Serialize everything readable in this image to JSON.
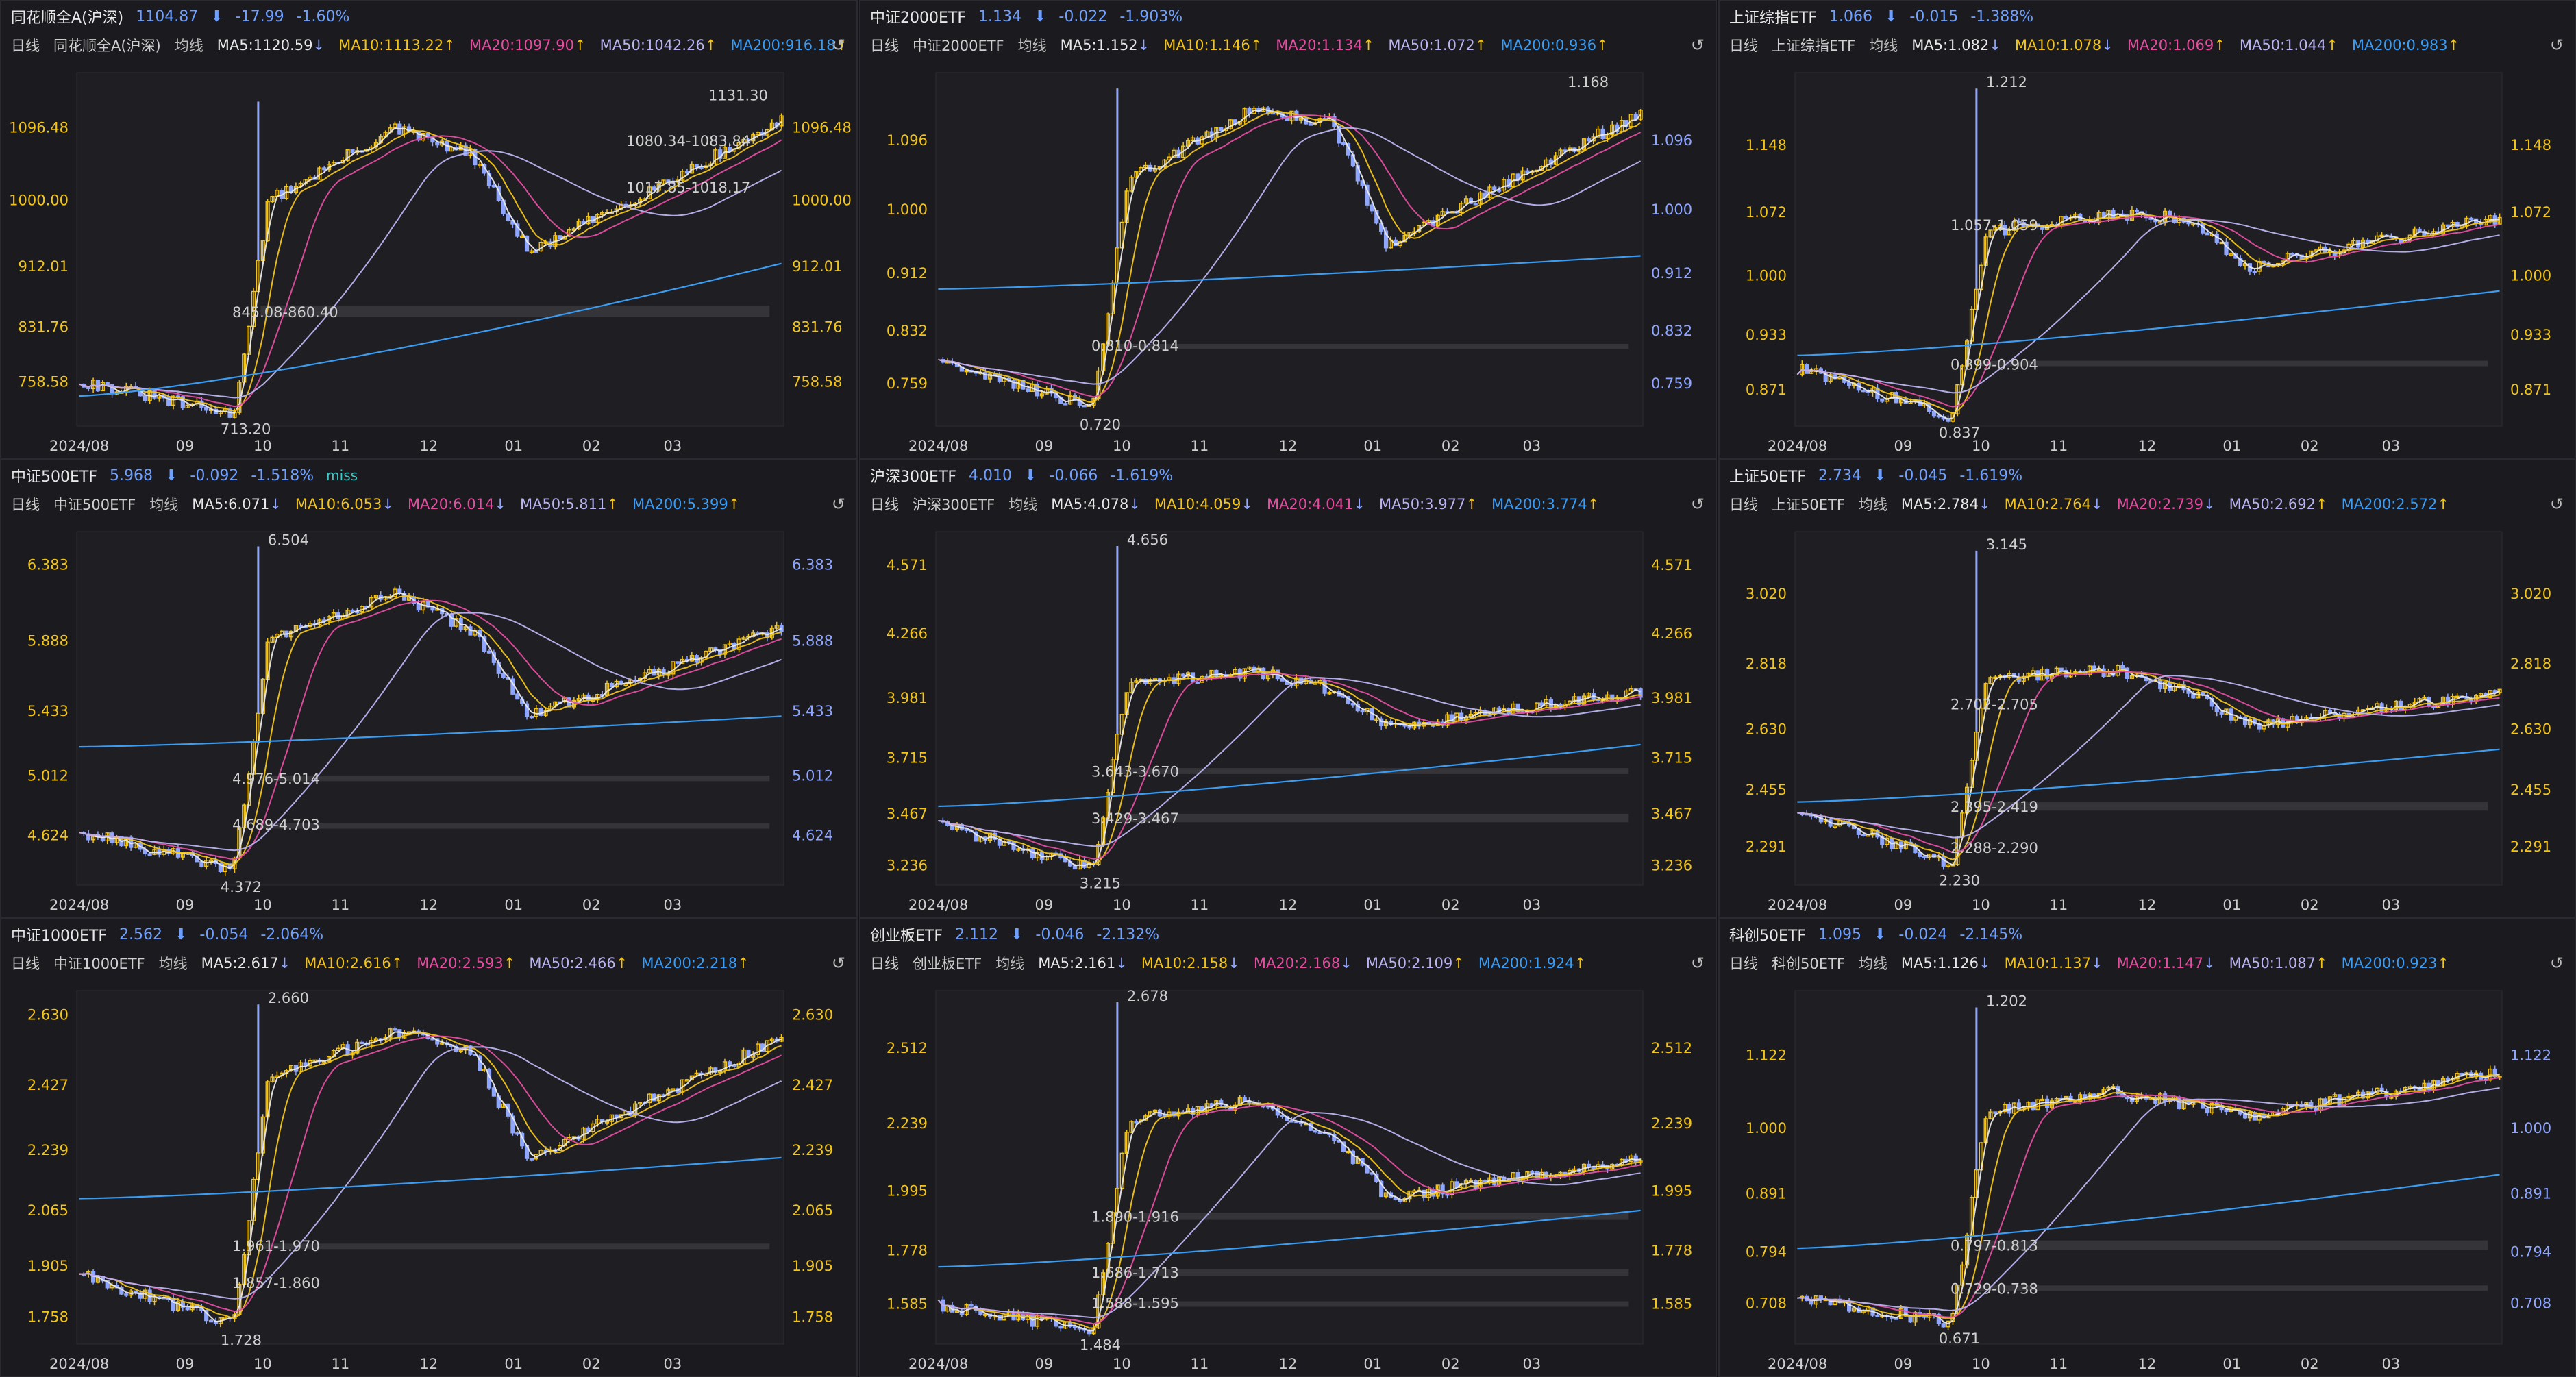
{
  "x_labels": [
    "2024/08",
    "09",
    "10",
    "11",
    "12",
    "01",
    "02",
    "03"
  ],
  "colors": {
    "ma5": "#e8e8e8",
    "ma10": "#f2c418",
    "ma20": "#e34ea0",
    "ma50": "#b9b4f0",
    "ma200": "#3a9cf2",
    "price_up": "#f2c418",
    "price_dn": "#8fa6ff",
    "gap": "#3a3a3e"
  },
  "common": {
    "period": "日线",
    "avg": "均线",
    "reset_icon": "undo-icon"
  },
  "panels": [
    {
      "name": "同花顺全A(沪深)",
      "price": "1104.87",
      "change": "-17.99",
      "pct": "-1.60%",
      "sub_name": "同花顺全A(沪深)",
      "ma5": "MA5:1120.59",
      "ma5_dir": "down",
      "ma10": "MA10:1113.22",
      "ma10_dir": "up",
      "ma20": "MA20:1097.90",
      "ma20_dir": "up",
      "ma50": "MA50:1042.26",
      "ma50_dir": "up",
      "ma200": "MA200:916.18",
      "ma200_dir": "up",
      "left_ticks": [
        "1096.48",
        "1000.00",
        "912.01",
        "831.76",
        "758.58"
      ],
      "right_ticks": [
        "1096.48",
        "1000.00",
        "912.01",
        "831.76",
        "758.58"
      ],
      "ymin": 700,
      "ymax": 1170,
      "tick_values": [
        1096.48,
        1000.0,
        912.01,
        831.76,
        758.58
      ],
      "hi": {
        "label": "1131.30",
        "value": 1131.3
      },
      "lo": {
        "label": "713.20",
        "value": 713.2
      },
      "ann": [
        {
          "t": "1080.34-1083.84",
          "v": 1080
        },
        {
          "t": "1017.85-1018.17",
          "v": 1018
        },
        {
          "t": "845.08-860.40",
          "v": 852
        }
      ],
      "gaps": [
        {
          "lo": 845.08,
          "hi": 860.4
        }
      ],
      "prof": {
        "base": 760,
        "trough": 715,
        "jump": 1000,
        "nov": 1095,
        "dec": 1060,
        "dip": 930,
        "end": 1104.87
      },
      "ma200_start": 740
    },
    {
      "name": "中证2000ETF",
      "price": "1.134",
      "change": "-0.022",
      "pct": "-1.903%",
      "sub_name": "中证2000ETF",
      "ma5": "MA5:1.152",
      "ma5_dir": "down",
      "ma10": "MA10:1.146",
      "ma10_dir": "up",
      "ma20": "MA20:1.134",
      "ma20_dir": "up",
      "ma50": "MA50:1.072",
      "ma50_dir": "up",
      "ma200": "MA200:0.936",
      "ma200_dir": "up",
      "left_ticks": [
        "1.096",
        "1.000",
        "0.912",
        "0.832",
        "0.759"
      ],
      "right_ticks": [
        "1.096",
        "1.000",
        "0.912",
        "0.832",
        "0.759"
      ],
      "ymin": 0.7,
      "ymax": 1.19,
      "tick_values": [
        1.096,
        1.0,
        0.912,
        0.832,
        0.759
      ],
      "hi": {
        "label": "1.168",
        "value": 1.168
      },
      "lo": {
        "label": "0.720",
        "value": 0.72
      },
      "ann": [
        {
          "t": "0.810-0.814",
          "v": 0.812
        }
      ],
      "gaps": [
        {
          "lo": 0.81,
          "hi": 0.814
        }
      ],
      "prof": {
        "base": 0.79,
        "trough": 0.725,
        "jump": 1.04,
        "nov": 1.14,
        "dec": 1.12,
        "dip": 0.95,
        "end": 1.134
      },
      "ma200_start": 0.89
    },
    {
      "name": "上证综指ETF",
      "price": "1.066",
      "change": "-0.015",
      "pct": "-1.388%",
      "sub_name": "上证综指ETF",
      "ma5": "MA5:1.082",
      "ma5_dir": "down",
      "ma10": "MA10:1.078",
      "ma10_dir": "down",
      "ma20": "MA20:1.069",
      "ma20_dir": "up",
      "ma50": "MA50:1.044",
      "ma50_dir": "up",
      "ma200": "MA200:0.983",
      "ma200_dir": "up",
      "left_ticks": [
        "1.148",
        "1.072",
        "1.000",
        "0.933",
        "0.871"
      ],
      "right_ticks": [
        "1.148",
        "1.072",
        "1.000",
        "0.933",
        "0.871"
      ],
      "ymin": 0.83,
      "ymax": 1.23,
      "tick_values": [
        1.148,
        1.072,
        1.0,
        0.933,
        0.871
      ],
      "hi": {
        "label": "1.212",
        "value": 1.212
      },
      "lo": {
        "label": "0.837",
        "value": 0.837
      },
      "ann": [
        {
          "t": "1.057-1.059",
          "v": 1.058
        },
        {
          "t": "0.899-0.904",
          "v": 0.9
        }
      ],
      "gaps": [
        {
          "lo": 0.899,
          "hi": 0.904
        }
      ],
      "prof": {
        "base": 0.895,
        "trough": 0.84,
        "jump": 1.05,
        "nov": 1.07,
        "dec": 1.065,
        "dip": 1.01,
        "end": 1.066
      },
      "ma200_start": 0.91
    },
    {
      "name": "中证500ETF",
      "price": "5.968",
      "change": "-0.092",
      "pct": "-1.518%",
      "miss": "miss",
      "sub_name": "中证500ETF",
      "ma5": "MA5:6.071",
      "ma5_dir": "down",
      "ma10": "MA10:6.053",
      "ma10_dir": "down",
      "ma20": "MA20:6.014",
      "ma20_dir": "down",
      "ma50": "MA50:5.811",
      "ma50_dir": "up",
      "ma200": "MA200:5.399",
      "ma200_dir": "up",
      "left_ticks": [
        "6.383",
        "5.888",
        "5.433",
        "5.012",
        "4.624"
      ],
      "right_ticks": [
        "6.383",
        "5.888",
        "5.433",
        "5.012",
        "4.624"
      ],
      "ymin": 4.3,
      "ymax": 6.6,
      "tick_values": [
        6.383,
        5.888,
        5.433,
        5.012,
        4.624
      ],
      "hi": {
        "label": "6.504",
        "value": 6.504
      },
      "lo": {
        "label": "4.372",
        "value": 4.372
      },
      "ann": [
        {
          "t": "4.976-5.014",
          "v": 4.995
        },
        {
          "t": "4.689-4.703",
          "v": 4.696
        }
      ],
      "gaps": [
        {
          "lo": 4.976,
          "hi": 5.014
        },
        {
          "lo": 4.689,
          "hi": 4.703
        }
      ],
      "prof": {
        "base": 4.65,
        "trough": 4.4,
        "jump": 5.9,
        "nov": 6.2,
        "dec": 5.95,
        "dip": 5.4,
        "end": 5.968
      },
      "ma200_start": 5.2
    },
    {
      "name": "沪深300ETF",
      "price": "4.010",
      "change": "-0.066",
      "pct": "-1.619%",
      "sub_name": "沪深300ETF",
      "ma5": "MA5:4.078",
      "ma5_dir": "down",
      "ma10": "MA10:4.059",
      "ma10_dir": "down",
      "ma20": "MA20:4.041",
      "ma20_dir": "down",
      "ma50": "MA50:3.977",
      "ma50_dir": "up",
      "ma200": "MA200:3.774",
      "ma200_dir": "up",
      "left_ticks": [
        "4.571",
        "4.266",
        "3.981",
        "3.715",
        "3.467",
        "3.236"
      ],
      "right_ticks": [
        "4.571",
        "4.266",
        "3.981",
        "3.715",
        "3.467",
        "3.236"
      ],
      "ymin": 3.15,
      "ymax": 4.72,
      "tick_values": [
        4.571,
        4.266,
        3.981,
        3.715,
        3.467,
        3.236
      ],
      "hi": {
        "label": "4.656",
        "value": 4.656
      },
      "lo": {
        "label": "3.215",
        "value": 3.215
      },
      "ann": [
        {
          "t": "3.643-3.670",
          "v": 3.656
        },
        {
          "t": "3.429-3.467",
          "v": 3.448
        }
      ],
      "gaps": [
        {
          "lo": 3.643,
          "hi": 3.67
        },
        {
          "lo": 3.429,
          "hi": 3.467
        }
      ],
      "prof": {
        "base": 3.42,
        "trough": 3.22,
        "jump": 4.05,
        "nov": 4.1,
        "dec": 4.02,
        "dip": 3.85,
        "end": 4.01
      },
      "ma200_start": 3.5
    },
    {
      "name": "上证50ETF",
      "price": "2.734",
      "change": "-0.045",
      "pct": "-1.619%",
      "sub_name": "上证50ETF",
      "ma5": "MA5:2.784",
      "ma5_dir": "down",
      "ma10": "MA10:2.764",
      "ma10_dir": "down",
      "ma20": "MA20:2.739",
      "ma20_dir": "down",
      "ma50": "MA50:2.692",
      "ma50_dir": "up",
      "ma200": "MA200:2.572",
      "ma200_dir": "up",
      "left_ticks": [
        "3.020",
        "2.818",
        "2.630",
        "2.455",
        "2.291"
      ],
      "right_ticks": [
        "3.020",
        "2.818",
        "2.630",
        "2.455",
        "2.291"
      ],
      "ymin": 2.18,
      "ymax": 3.2,
      "tick_values": [
        3.02,
        2.818,
        2.63,
        2.455,
        2.291
      ],
      "hi": {
        "label": "3.145",
        "value": 3.145
      },
      "lo": {
        "label": "2.230",
        "value": 2.23
      },
      "ann": [
        {
          "t": "2.702-2.705",
          "v": 2.703
        },
        {
          "t": "2.395-2.419",
          "v": 2.407
        },
        {
          "t": "2.288-2.290",
          "v": 2.289
        }
      ],
      "gaps": [
        {
          "lo": 2.395,
          "hi": 2.419
        }
      ],
      "prof": {
        "base": 2.4,
        "trough": 2.24,
        "jump": 2.78,
        "nov": 2.8,
        "dec": 2.74,
        "dip": 2.64,
        "end": 2.734
      },
      "ma200_start": 2.42
    },
    {
      "name": "中证1000ETF",
      "price": "2.562",
      "change": "-0.054",
      "pct": "-2.064%",
      "sub_name": "中证1000ETF",
      "ma5": "MA5:2.617",
      "ma5_dir": "down",
      "ma10": "MA10:2.616",
      "ma10_dir": "up",
      "ma20": "MA20:2.593",
      "ma20_dir": "up",
      "ma50": "MA50:2.466",
      "ma50_dir": "up",
      "ma200": "MA200:2.218",
      "ma200_dir": "up",
      "left_ticks": [
        "2.630",
        "2.427",
        "2.239",
        "2.065",
        "1.905",
        "1.758"
      ],
      "right_ticks": [
        "2.630",
        "2.427",
        "2.239",
        "2.065",
        "1.905",
        "1.758"
      ],
      "ymin": 1.68,
      "ymax": 2.7,
      "tick_values": [
        2.63,
        2.427,
        2.239,
        2.065,
        1.905,
        1.758
      ],
      "hi": {
        "label": "2.660",
        "value": 2.66
      },
      "lo": {
        "label": "1.728",
        "value": 1.728
      },
      "ann": [
        {
          "t": "1.961-1.970",
          "v": 1.965
        },
        {
          "t": "1.857-1.860",
          "v": 1.858
        }
      ],
      "gaps": [
        {
          "lo": 1.961,
          "hi": 1.97
        }
      ],
      "prof": {
        "base": 1.88,
        "trough": 1.74,
        "jump": 2.45,
        "nov": 2.58,
        "dec": 2.52,
        "dip": 2.22,
        "end": 2.562
      },
      "ma200_start": 2.1
    },
    {
      "name": "创业板ETF",
      "price": "2.112",
      "change": "-0.046",
      "pct": "-2.132%",
      "sub_name": "创业板ETF",
      "ma5": "MA5:2.161",
      "ma5_dir": "down",
      "ma10": "MA10:2.158",
      "ma10_dir": "down",
      "ma20": "MA20:2.168",
      "ma20_dir": "down",
      "ma50": "MA50:2.109",
      "ma50_dir": "up",
      "ma200": "MA200:1.924",
      "ma200_dir": "up",
      "left_ticks": [
        "2.512",
        "2.239",
        "1.995",
        "1.778",
        "1.585"
      ],
      "right_ticks": [
        "2.512",
        "2.239",
        "1.995",
        "1.778",
        "1.585"
      ],
      "ymin": 1.44,
      "ymax": 2.72,
      "tick_values": [
        2.512,
        2.239,
        1.995,
        1.778,
        1.585
      ],
      "hi": {
        "label": "2.678",
        "value": 2.678
      },
      "lo": {
        "label": "1.484",
        "value": 1.484
      },
      "ann": [
        {
          "t": "1.890-1.916",
          "v": 1.903
        },
        {
          "t": "1.686-1.713",
          "v": 1.7
        },
        {
          "t": "1.588-1.595",
          "v": 1.59
        }
      ],
      "gaps": [
        {
          "lo": 1.89,
          "hi": 1.916
        },
        {
          "lo": 1.686,
          "hi": 1.713
        },
        {
          "lo": 1.588,
          "hi": 1.595
        }
      ],
      "prof": {
        "base": 1.58,
        "trough": 1.49,
        "jump": 2.25,
        "nov": 2.32,
        "dec": 2.2,
        "dip": 1.97,
        "end": 2.112
      },
      "ma200_start": 1.72
    },
    {
      "name": "科创50ETF",
      "price": "1.095",
      "change": "-0.024",
      "pct": "-2.145%",
      "sub_name": "科创50ETF",
      "ma5": "MA5:1.126",
      "ma5_dir": "down",
      "ma10": "MA10:1.137",
      "ma10_dir": "down",
      "ma20": "MA20:1.147",
      "ma20_dir": "down",
      "ma50": "MA50:1.087",
      "ma50_dir": "up",
      "ma200": "MA200:0.923",
      "ma200_dir": "up",
      "left_ticks": [
        "1.122",
        "1.000",
        "0.891",
        "0.794",
        "0.708"
      ],
      "right_ticks": [
        "1.122",
        "1.000",
        "0.891",
        "0.794",
        "0.708"
      ],
      "ymin": 0.64,
      "ymax": 1.23,
      "tick_values": [
        1.122,
        1.0,
        0.891,
        0.794,
        0.708
      ],
      "hi": {
        "label": "1.202",
        "value": 1.202
      },
      "lo": {
        "label": "0.671",
        "value": 0.671
      },
      "ann": [
        {
          "t": "0.797-0.813",
          "v": 0.805
        },
        {
          "t": "0.729-0.738",
          "v": 0.733
        }
      ],
      "gaps": [
        {
          "lo": 0.797,
          "hi": 0.813
        },
        {
          "lo": 0.729,
          "hi": 0.738
        }
      ],
      "prof": {
        "base": 0.72,
        "trough": 0.675,
        "jump": 1.03,
        "nov": 1.06,
        "dec": 1.04,
        "dip": 1.02,
        "end": 1.095
      },
      "ma200_start": 0.8
    }
  ]
}
